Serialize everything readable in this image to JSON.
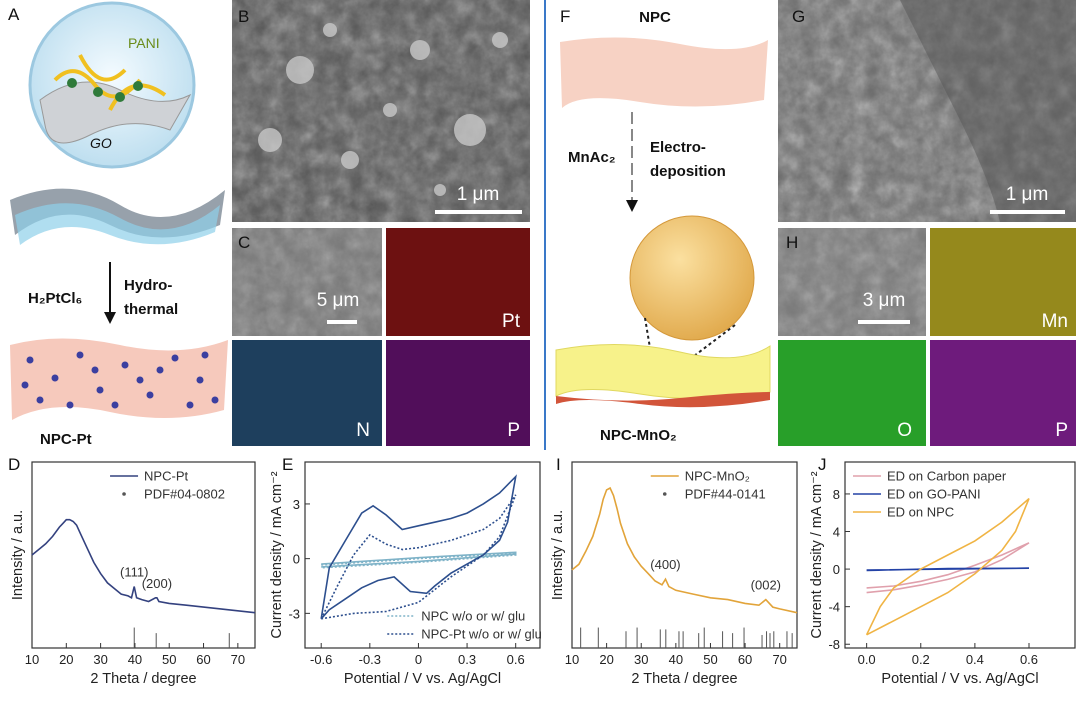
{
  "panel_letters": [
    "A",
    "B",
    "C",
    "D",
    "E",
    "F",
    "G",
    "H",
    "I",
    "J"
  ],
  "scheme_a": {
    "pani": "PANI",
    "go": "GO",
    "precursor": "H₂PtCl₆",
    "method": [
      "Hydro-",
      "thermal"
    ],
    "product": "NPC-Pt"
  },
  "sem_b": {
    "scale": "1 μm"
  },
  "map_c": {
    "scale": "5 μm",
    "elements": [
      "Pt",
      "N",
      "P"
    ]
  },
  "scheme_f": {
    "substrate": "NPC",
    "precursor": "MnAc₂",
    "method": [
      "Electro-",
      "deposition"
    ],
    "product": "NPC-MnO₂"
  },
  "sem_g": {
    "scale": "1 μm"
  },
  "map_h": {
    "scale": "3 μm",
    "elements": [
      "Mn",
      "O",
      "P"
    ]
  },
  "chart_data": [
    {
      "type": "line",
      "xlabel": "2 Theta / degree",
      "ylabel": "Intensity / a.u.",
      "legend": "upper right",
      "xlim": [
        10,
        75
      ],
      "xticks": [
        10,
        20,
        30,
        40,
        50,
        60,
        70
      ],
      "ylim": [
        0,
        100
      ],
      "series": [
        {
          "name": "NPC-Pt",
          "color": "#34427f",
          "x": [
            10,
            12,
            14,
            16,
            18,
            19,
            20,
            21,
            22,
            23,
            24,
            26,
            28,
            30,
            32,
            34,
            36,
            38,
            39,
            39.8,
            40.5,
            42,
            44,
            46,
            46.4,
            47,
            50,
            55,
            60,
            65,
            70,
            75
          ],
          "values": [
            50,
            53,
            56,
            60,
            65,
            67,
            69,
            69,
            68,
            66,
            62,
            54,
            46,
            40,
            35,
            32,
            29,
            28,
            27,
            33,
            27,
            26,
            25,
            27,
            27,
            25,
            24,
            23,
            22,
            21,
            20,
            19
          ]
        }
      ],
      "reference": {
        "name": "PDF#04-0802",
        "color": "#555555",
        "x": [
          39.8,
          46.2,
          67.5
        ],
        "values": [
          11,
          8,
          8
        ]
      },
      "annotations": [
        {
          "text": "(111)",
          "x": 39.8
        },
        {
          "text": "(200)",
          "x": 46.4
        }
      ]
    },
    {
      "type": "line",
      "xlabel": "Potential / V vs. Ag/AgCl",
      "ylabel": "Current density / mA cm⁻²",
      "legend": "lower right",
      "xlim": [
        -0.7,
        0.75
      ],
      "xticks": [
        -0.6,
        -0.3,
        0,
        0.3,
        0.6
      ],
      "ylim": [
        -4.9,
        5.3
      ],
      "yticks": [
        -3,
        0,
        3
      ],
      "series": [
        {
          "name": "NPC w/o or w/ glu",
          "color": "#7fb3c8",
          "traces": [
            {
              "style": "solid",
              "x": [
                -0.6,
                0,
                0.6,
                0.6,
                0,
                -0.6
              ],
              "values": [
                -0.3,
                0.05,
                0.35,
                0.25,
                -0.15,
                -0.45
              ]
            },
            {
              "style": "dotted",
              "x": [
                -0.6,
                0,
                0.6,
                0.6,
                0,
                -0.6
              ],
              "values": [
                -0.35,
                0,
                0.3,
                0.2,
                -0.2,
                -0.5
              ]
            }
          ]
        },
        {
          "name": "NPC-Pt w/o or w/ glu",
          "color": "#2d4f8e",
          "traces": [
            {
              "style": "solid",
              "x": [
                -0.6,
                -0.55,
                -0.45,
                -0.35,
                -0.28,
                -0.2,
                -0.1,
                0,
                0.1,
                0.2,
                0.3,
                0.4,
                0.5,
                0.6,
                0.55,
                0.5,
                0.4,
                0.3,
                0.2,
                0.1,
                0.05,
                -0.05,
                -0.15,
                -0.25,
                -0.35,
                -0.45,
                -0.55,
                -0.6
              ],
              "values": [
                -3.3,
                -0.5,
                1,
                2.5,
                2.9,
                2.4,
                1.6,
                1.8,
                2,
                2.2,
                2.5,
                3,
                3.6,
                4.5,
                2,
                1,
                0.2,
                -0.3,
                -0.8,
                -1.5,
                -1.9,
                -1.8,
                -1,
                -1.2,
                -1.6,
                -2.2,
                -2.8,
                -3.3
              ]
            },
            {
              "style": "dotted",
              "x": [
                -0.6,
                -0.5,
                -0.4,
                -0.3,
                -0.2,
                -0.1,
                0,
                0.2,
                0.4,
                0.5,
                0.6,
                0.5,
                0.4,
                0.2,
                0,
                -0.2,
                -0.4,
                -0.6
              ],
              "values": [
                -3.3,
                -1.5,
                0.2,
                1.3,
                0.8,
                0.5,
                0.6,
                1,
                1.6,
                2.2,
                3.5,
                1.2,
                0.2,
                -1,
                -2.4,
                -2.9,
                -3,
                -3.3
              ]
            }
          ]
        }
      ]
    },
    {
      "type": "line",
      "xlabel": "2 Theta / degree",
      "ylabel": "Intensity / a.u.",
      "legend": "upper right",
      "xlim": [
        10,
        75
      ],
      "xticks": [
        10,
        20,
        30,
        40,
        50,
        60,
        70
      ],
      "ylim": [
        0,
        100
      ],
      "series": [
        {
          "name": "NPC-MnO₂",
          "color": "#e2a43a",
          "x": [
            10,
            12,
            14,
            16,
            18,
            19,
            20,
            21,
            22,
            23,
            24,
            26,
            28,
            30,
            32,
            34,
            36,
            37,
            38,
            40,
            45,
            50,
            55,
            60,
            64,
            66,
            68,
            70,
            75
          ],
          "values": [
            42,
            45,
            52,
            60,
            72,
            80,
            85,
            86,
            82,
            75,
            67,
            56,
            49,
            44,
            40,
            36,
            34,
            37,
            33,
            31,
            29,
            27,
            26,
            24,
            23,
            26,
            22,
            21,
            19
          ]
        }
      ],
      "reference": {
        "name": "PDF#44-0141",
        "color": "#555555",
        "x": [
          12.5,
          17.6,
          25.6,
          28.8,
          35.5,
          37.1,
          40.9,
          42.1,
          46.6,
          48.2,
          53.5,
          56.4,
          59.7,
          64.9,
          66.2,
          67.2,
          68.3,
          72.1,
          73.6
        ],
        "values": [
          11,
          11,
          9,
          11,
          10,
          10,
          9,
          9,
          8,
          11,
          9,
          8,
          11,
          7,
          9,
          8,
          9,
          9,
          8
        ]
      },
      "annotations": [
        {
          "text": "(400)",
          "x": 37
        },
        {
          "text": "(002)",
          "x": 66
        }
      ]
    },
    {
      "type": "line",
      "xlabel": "Potential / V vs. Ag/AgCl",
      "ylabel": "Current density / mA cm⁻²",
      "legend": "upper left",
      "xlim": [
        -0.08,
        0.77
      ],
      "xticks": [
        {
          "value": 0,
          "label": "0.0"
        },
        {
          "value": 0.2,
          "label": "0.2"
        },
        {
          "value": 0.4,
          "label": "0.4"
        },
        {
          "value": 0.6,
          "label": "0.6"
        }
      ],
      "ylim": [
        -8.4,
        11.4
      ],
      "yticks": [
        -8,
        -4,
        0,
        4,
        8
      ],
      "series": [
        {
          "name": "ED on Carbon paper",
          "color": "#e0a0ac",
          "x": [
            0,
            0.1,
            0.2,
            0.3,
            0.4,
            0.5,
            0.6,
            0.5,
            0.4,
            0.3,
            0.2,
            0.1,
            0
          ],
          "values": [
            -2,
            -1.8,
            -1.3,
            -0.6,
            0.4,
            1.5,
            2.8,
            1,
            -0.3,
            -1.1,
            -1.7,
            -2.2,
            -2.5
          ]
        },
        {
          "name": "ED on GO-PANI",
          "color": "#2342a6",
          "x": [
            0,
            0.3,
            0.6,
            0.3,
            0
          ],
          "values": [
            -0.1,
            0,
            0.1,
            0.05,
            -0.15
          ]
        },
        {
          "name": "ED on NPC",
          "color": "#f0b444",
          "x": [
            0,
            0.05,
            0.1,
            0.2,
            0.3,
            0.4,
            0.5,
            0.6,
            0.55,
            0.5,
            0.4,
            0.3,
            0.2,
            0.1,
            0
          ],
          "values": [
            -7,
            -4,
            -2,
            0,
            1.5,
            3,
            5,
            7.5,
            4,
            2,
            -0.5,
            -2.5,
            -4,
            -5.5,
            -7
          ]
        }
      ]
    }
  ]
}
